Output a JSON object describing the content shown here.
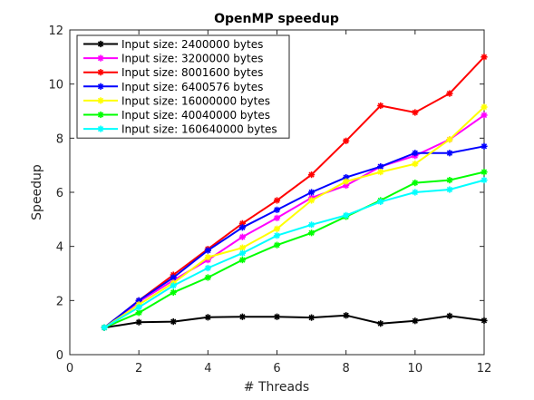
{
  "chart_data": {
    "type": "line",
    "title": "OpenMP speedup",
    "xlabel": "# Threads",
    "ylabel": "Speedup",
    "xlim": [
      0,
      12
    ],
    "ylim": [
      0,
      12
    ],
    "xticks": [
      0,
      2,
      4,
      6,
      8,
      10,
      12
    ],
    "yticks": [
      0,
      2,
      4,
      6,
      8,
      10,
      12
    ],
    "grid": false,
    "legend_position": "top-left",
    "x": [
      1,
      2,
      3,
      4,
      5,
      6,
      7,
      8,
      9,
      10,
      11,
      12
    ],
    "series": [
      {
        "name": "Input size: 2400000 bytes",
        "color": "#000000",
        "values": [
          1.0,
          1.2,
          1.22,
          1.38,
          1.4,
          1.4,
          1.37,
          1.45,
          1.15,
          1.25,
          1.43,
          1.26
        ]
      },
      {
        "name": "Input size: 3200000 bytes",
        "color": "#ff00ff",
        "values": [
          1.0,
          1.95,
          2.75,
          3.5,
          4.35,
          5.05,
          5.8,
          6.25,
          6.95,
          7.35,
          7.95,
          8.85
        ]
      },
      {
        "name": "Input size: 8001600 bytes",
        "color": "#ff0000",
        "values": [
          1.0,
          2.0,
          2.95,
          3.9,
          4.85,
          5.7,
          6.65,
          7.9,
          9.2,
          8.95,
          9.65,
          11.0
        ]
      },
      {
        "name": "Input size: 6400576 bytes",
        "color": "#0000ff",
        "values": [
          1.0,
          2.0,
          2.85,
          3.85,
          4.7,
          5.35,
          6.0,
          6.55,
          6.95,
          7.45,
          7.45,
          7.7
        ]
      },
      {
        "name": "Input size: 16000000 bytes",
        "color": "#ffff00",
        "values": [
          1.0,
          1.85,
          2.65,
          3.6,
          3.95,
          4.65,
          5.7,
          6.4,
          6.75,
          7.05,
          7.95,
          9.15
        ]
      },
      {
        "name": "Input size: 40040000 bytes",
        "color": "#00ff00",
        "values": [
          1.0,
          1.55,
          2.3,
          2.85,
          3.5,
          4.05,
          4.5,
          5.1,
          5.7,
          6.35,
          6.45,
          6.75
        ]
      },
      {
        "name": "Input size: 160640000 bytes",
        "color": "#00ffff",
        "values": [
          1.0,
          1.75,
          2.55,
          3.2,
          3.75,
          4.4,
          4.8,
          5.15,
          5.65,
          6.0,
          6.1,
          6.45
        ]
      }
    ]
  }
}
